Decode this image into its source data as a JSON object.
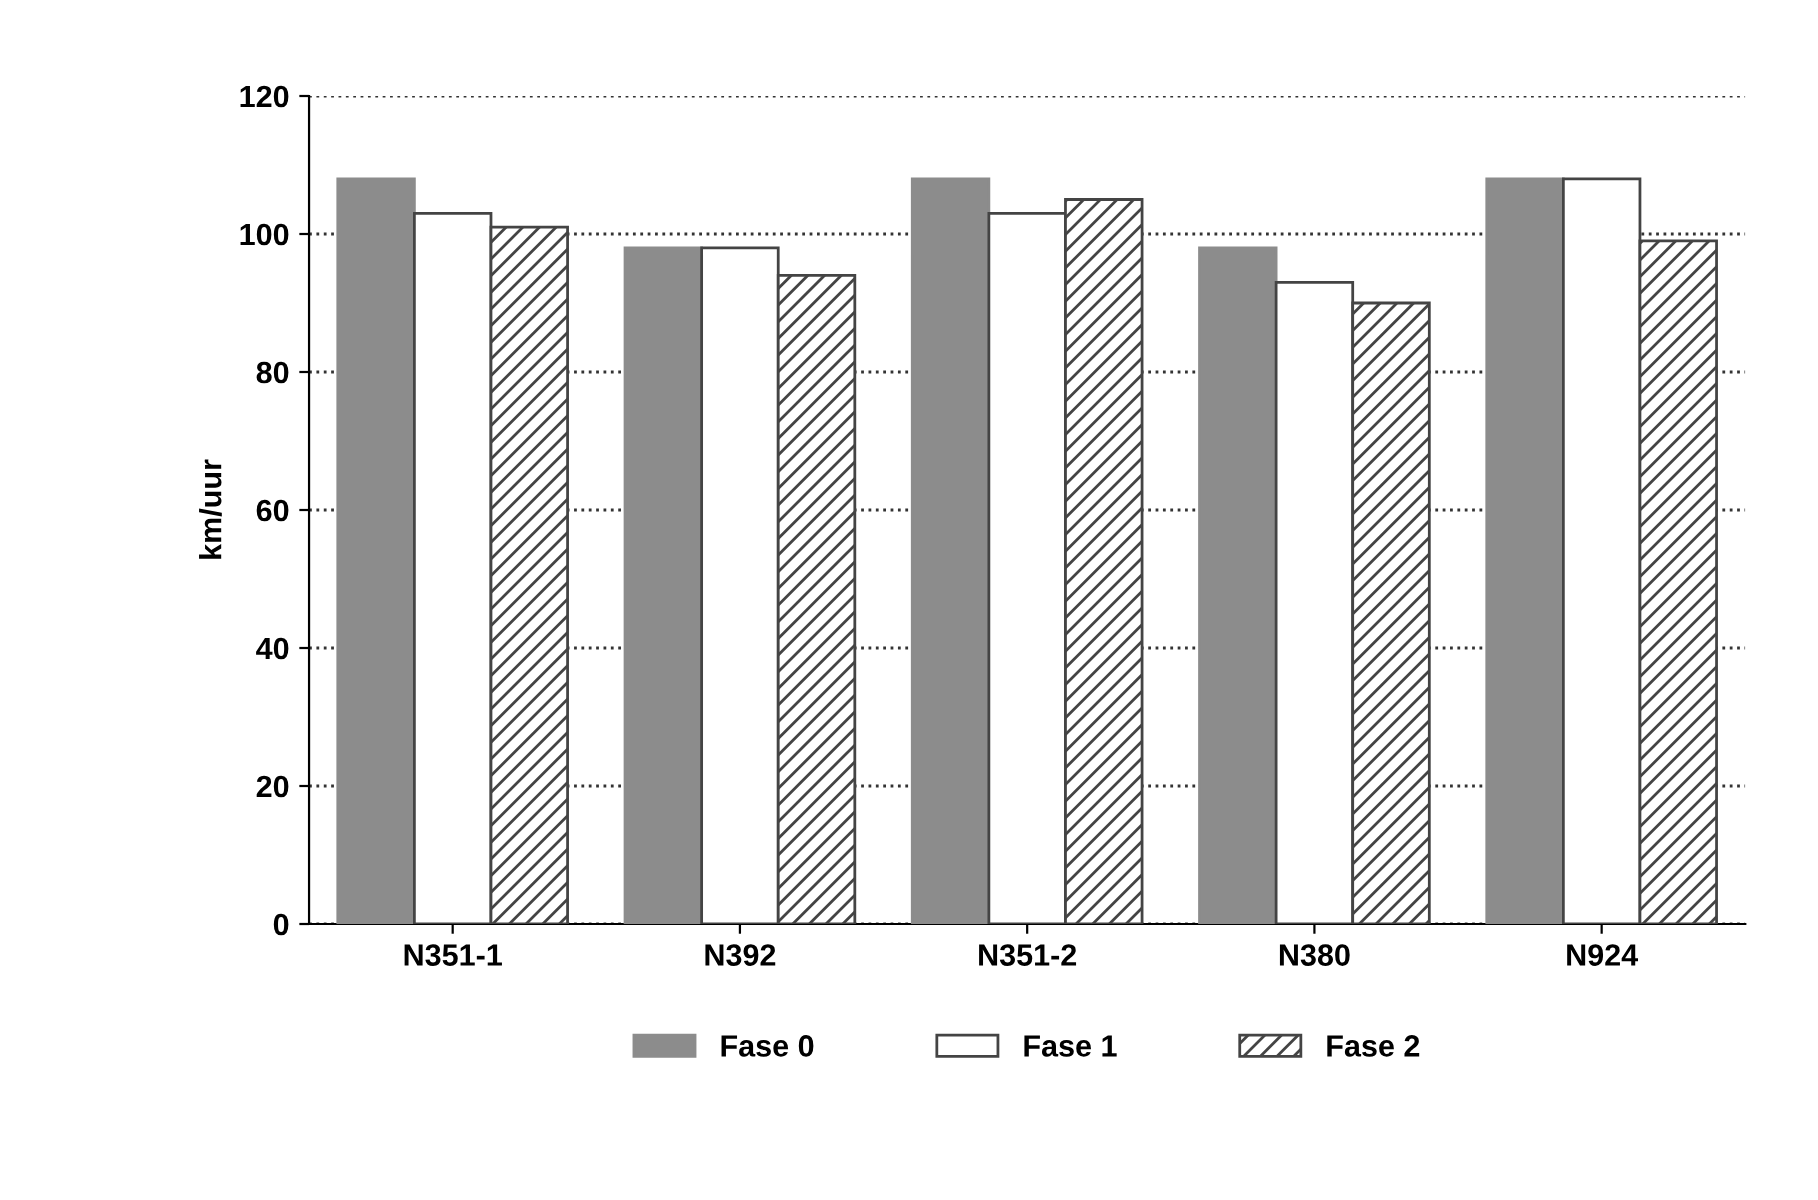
{
  "chart_data": {
    "type": "bar",
    "ylabel": "km/uur",
    "categories": [
      "N351-1",
      "N392",
      "N351-2",
      "N380",
      "N924"
    ],
    "series": [
      {
        "name": "Fase 0",
        "color": "#8c8c8c",
        "values": [
          108,
          98,
          108,
          98,
          108
        ]
      },
      {
        "name": "Fase 1",
        "color": "#ffffff",
        "values": [
          103,
          98,
          103,
          93,
          108
        ]
      },
      {
        "name": "Fase 2",
        "color": "#444444",
        "values": [
          101,
          94,
          105,
          90,
          99
        ]
      }
    ],
    "ylim": [
      0,
      120
    ],
    "yticks": [
      0,
      20,
      40,
      60,
      80,
      100,
      120
    ],
    "grid": "y",
    "legend": "bottom"
  }
}
